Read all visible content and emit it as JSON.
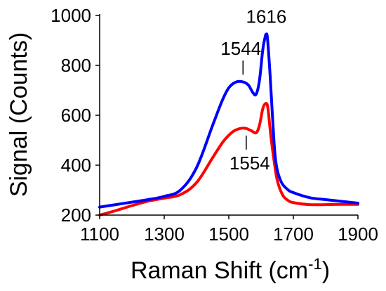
{
  "chart_data": {
    "type": "line",
    "xlabel": "Raman Shift (cm",
    "xlabel_sup": "-1",
    "xlabel_close": ")",
    "ylabel": "Signal (Counts)",
    "xlim": [
      1100,
      1900
    ],
    "ylim": [
      200,
      1000
    ],
    "x_ticks": [
      1100,
      1300,
      1500,
      1700,
      1900
    ],
    "y_ticks": [
      200,
      400,
      600,
      800,
      1000
    ],
    "grid": false,
    "series": [
      {
        "color": "#0000ff",
        "x": [
          1100,
          1150,
          1200,
          1250,
          1300,
          1350,
          1400,
          1450,
          1480,
          1500,
          1520,
          1540,
          1560,
          1575,
          1585,
          1595,
          1605,
          1612,
          1616,
          1620,
          1628,
          1636,
          1645,
          1660,
          1680,
          1700,
          1750,
          1800,
          1850,
          1900
        ],
        "y": [
          232,
          242,
          252,
          262,
          275,
          300,
          390,
          560,
          660,
          710,
          732,
          735,
          722,
          690,
          685,
          740,
          860,
          910,
          925,
          905,
          760,
          580,
          420,
          340,
          305,
          290,
          270,
          262,
          255,
          248
        ]
      },
      {
        "color": "#ff0000",
        "x": [
          1100,
          1150,
          1200,
          1250,
          1300,
          1350,
          1400,
          1450,
          1480,
          1500,
          1520,
          1540,
          1554,
          1570,
          1585,
          1595,
          1605,
          1612,
          1618,
          1622,
          1630,
          1640,
          1650,
          1665,
          1680,
          1700,
          1750,
          1800,
          1850,
          1900
        ],
        "y": [
          195,
          218,
          238,
          256,
          268,
          282,
          330,
          430,
          490,
          520,
          540,
          548,
          547,
          538,
          530,
          560,
          625,
          645,
          645,
          620,
          520,
          420,
          340,
          285,
          262,
          250,
          242,
          242,
          243,
          243
        ]
      }
    ],
    "annotations": [
      {
        "text": "1616",
        "x": 1616,
        "y": 925,
        "anchor": "above"
      },
      {
        "text": "1544",
        "x": 1544,
        "y": 735,
        "anchor": "above-line"
      },
      {
        "text": "1554",
        "x": 1554,
        "y": 547,
        "anchor": "below-line"
      }
    ]
  }
}
